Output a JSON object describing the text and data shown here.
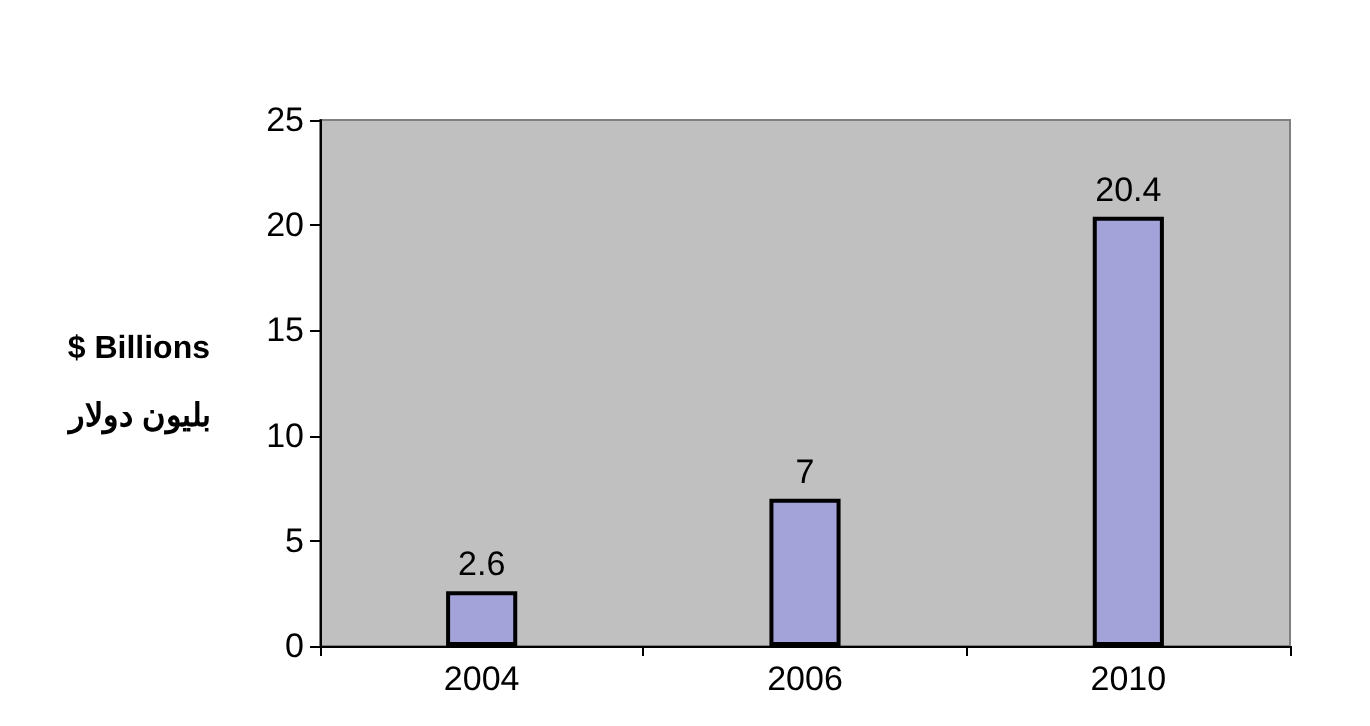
{
  "chart_data": {
    "type": "bar",
    "ylabel": "$ Billions\nبليون دولار",
    "categories": [
      "2004",
      "2006",
      "2010"
    ],
    "values": [
      2.6,
      7,
      20.4
    ],
    "color": "#a3a3d9",
    "ylim": [
      0,
      25
    ],
    "yticks": [
      0,
      5,
      10,
      15,
      20,
      25
    ],
    "grid": false,
    "data_labels": true
  }
}
